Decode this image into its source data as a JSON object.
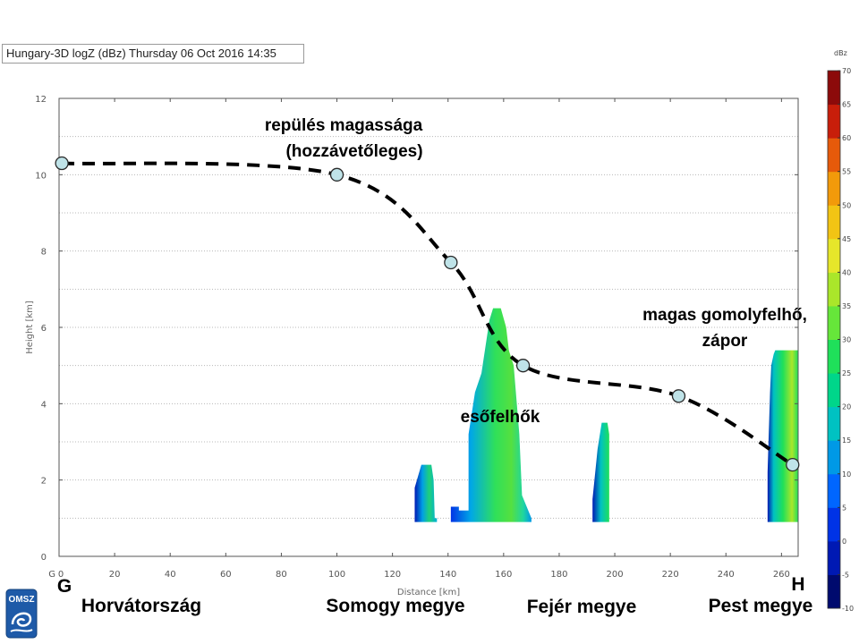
{
  "title": "Hungary-3D logZ (dBz) Thursday 06 Oct 2016 14:35",
  "colorbar": {
    "unit": "dBz",
    "ticks": [
      -10,
      -5,
      0,
      5,
      10,
      15,
      20,
      25,
      30,
      35,
      40,
      45,
      50,
      55,
      60,
      65,
      70
    ],
    "colors": [
      "#000a6e",
      "#0019b3",
      "#0033e6",
      "#0066ff",
      "#0099e6",
      "#00c2c2",
      "#00d68a",
      "#1fe05a",
      "#66e63a",
      "#aae62a",
      "#e6e62a",
      "#f2c414",
      "#f29a0a",
      "#e65a0a",
      "#c81e0a",
      "#8c0a0a"
    ]
  },
  "chart_data": {
    "type": "line",
    "xlabel": "Distance [km]",
    "ylabel": "Height [km]",
    "xlim": [
      0,
      266
    ],
    "ylim": [
      0,
      12
    ],
    "x_ticks": [
      "0",
      "20",
      "40",
      "60",
      "80",
      "100",
      "120",
      "140",
      "160",
      "180",
      "200",
      "220",
      "240",
      "260"
    ],
    "y_ticks": [
      "0",
      "2",
      "4",
      "6",
      "8",
      "10",
      "12"
    ],
    "origin_label": "G",
    "grid": true,
    "series": [
      {
        "x": [
          1,
          100,
          141,
          167,
          223,
          264
        ],
        "y": [
          10.3,
          10.0,
          7.7,
          5.0,
          4.2,
          2.4
        ]
      }
    ],
    "reflectivity_cells": [
      {
        "x_start": 128,
        "x_end": 136,
        "top_km": 2.4,
        "base_km": 0.9,
        "peak_dbz": 20
      },
      {
        "x_start": 141,
        "x_end": 170,
        "top_km": 6.5,
        "base_km": 0.9,
        "peak_dbz": 30
      },
      {
        "x_start": 192,
        "x_end": 198,
        "top_km": 3.5,
        "base_km": 0.9,
        "peak_dbz": 15
      },
      {
        "x_start": 255,
        "x_end": 266,
        "top_km": 5.4,
        "base_km": 0.9,
        "peak_dbz": 30
      }
    ],
    "annotations": {
      "flight": [
        "repülés magassága",
        "(hozzávetőleges)"
      ],
      "rain_clouds": "esőfelhők",
      "cumulus": [
        "magas gomolyfelhő,",
        "zápor"
      ]
    },
    "endpoints": {
      "start": "G",
      "end": "H"
    },
    "regions": [
      "Horvátország",
      "Somogy megye",
      "Fejér megye",
      "Pest megye"
    ]
  },
  "logo_text": "OMSZ"
}
